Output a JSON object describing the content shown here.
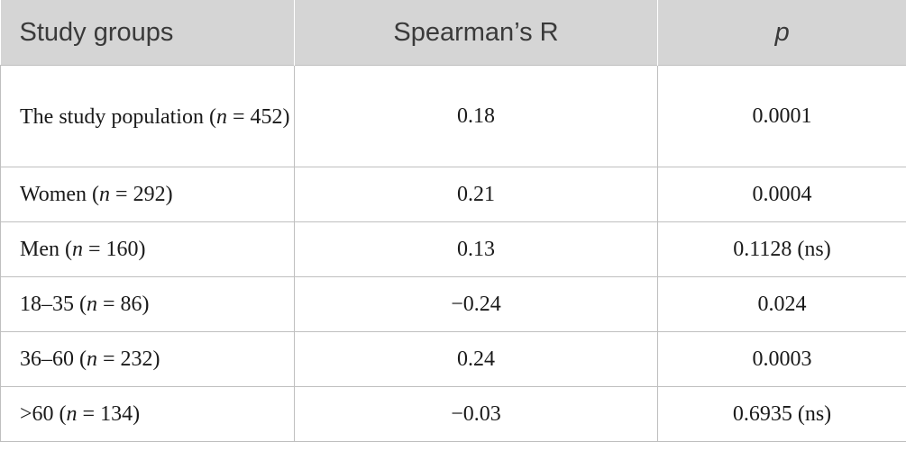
{
  "table": {
    "headers": [
      "Study groups",
      "Spearman’s R",
      "p"
    ],
    "rows": [
      {
        "group_prefix": "The study population (",
        "n_label": "n",
        "group_suffix": " = 452)",
        "r": "0.18",
        "p": "0.0001"
      },
      {
        "group_prefix": "Women (",
        "n_label": "n",
        "group_suffix": " = 292)",
        "r": "0.21",
        "p": "0.0004"
      },
      {
        "group_prefix": "Men (",
        "n_label": "n",
        "group_suffix": " = 160)",
        "r": "0.13",
        "p": "0.1128 (ns)"
      },
      {
        "group_prefix": "18–35 (",
        "n_label": "n",
        "group_suffix": " = 86)",
        "r": "−0.24",
        "p": "0.024"
      },
      {
        "group_prefix": "36–60 (",
        "n_label": "n",
        "group_suffix": " = 232)",
        "r": "0.24",
        "p": "0.0003"
      },
      {
        "group_prefix": ">60 (",
        "n_label": "n",
        "group_suffix": " = 134)",
        "r": "−0.03",
        "p": "0.6935 (ns)"
      }
    ]
  }
}
